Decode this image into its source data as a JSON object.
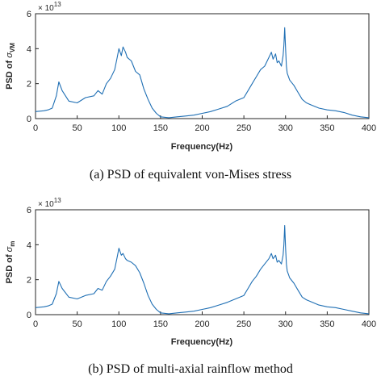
{
  "chart_data": [
    {
      "type": "line",
      "caption": "(a) PSD of equivalent von-Mises stress",
      "xlabel": "Frequency(Hz)",
      "ylabel_prefix": "PSD of ",
      "ylabel_symbol": "σ",
      "ylabel_sub": "VM",
      "y_multiplier_base": "× 10",
      "y_multiplier_exp": "13",
      "xlim": [
        0,
        400
      ],
      "ylim": [
        0,
        6
      ],
      "xticks": [
        "0",
        "50",
        "100",
        "150",
        "200",
        "250",
        "300",
        "350",
        "400"
      ],
      "yticks": [
        "0",
        "2",
        "4",
        "6"
      ],
      "grid": false,
      "series_color": "#1f6fb4",
      "series": [
        {
          "x": [
            0,
            10,
            15,
            20,
            25,
            28,
            32,
            40,
            50,
            60,
            70,
            75,
            80,
            85,
            90,
            95,
            98,
            100,
            103,
            105,
            108,
            110,
            115,
            120,
            125,
            130,
            135,
            140,
            145,
            150,
            160,
            170,
            180,
            190,
            200,
            210,
            220,
            230,
            240,
            250,
            255,
            260,
            265,
            270,
            275,
            280,
            283,
            285,
            288,
            290,
            292,
            295,
            297,
            298,
            299,
            300,
            301,
            302,
            305,
            310,
            315,
            320,
            325,
            330,
            340,
            350,
            360,
            370,
            380,
            390,
            400
          ],
          "y": [
            0.4,
            0.45,
            0.5,
            0.6,
            1.3,
            2.1,
            1.6,
            1.0,
            0.9,
            1.2,
            1.3,
            1.6,
            1.4,
            2.0,
            2.3,
            2.8,
            3.5,
            4.0,
            3.6,
            4.1,
            3.8,
            3.5,
            3.3,
            2.7,
            2.5,
            1.7,
            1.1,
            0.6,
            0.3,
            0.1,
            0.05,
            0.1,
            0.15,
            0.2,
            0.3,
            0.4,
            0.55,
            0.7,
            1.0,
            1.2,
            1.6,
            2.0,
            2.4,
            2.8,
            3.0,
            3.5,
            3.8,
            3.4,
            3.7,
            3.2,
            3.3,
            3.0,
            3.6,
            4.2,
            5.2,
            4.0,
            3.0,
            2.6,
            2.2,
            1.9,
            1.5,
            1.1,
            0.9,
            0.8,
            0.6,
            0.5,
            0.45,
            0.35,
            0.2,
            0.1,
            0.05
          ]
        }
      ]
    },
    {
      "type": "line",
      "caption": "(b) PSD of multi-axial rainflow method",
      "xlabel": "Frequency(Hz)",
      "ylabel_prefix": "PSD of ",
      "ylabel_symbol": "σ",
      "ylabel_sub": "m",
      "y_multiplier_base": "× 10",
      "y_multiplier_exp": "13",
      "xlim": [
        0,
        400
      ],
      "ylim": [
        0,
        6
      ],
      "xticks": [
        "0",
        "50",
        "100",
        "150",
        "200",
        "250",
        "300",
        "350",
        "400"
      ],
      "yticks": [
        "0",
        "2",
        "4",
        "6"
      ],
      "grid": false,
      "series_color": "#1f6fb4",
      "series": [
        {
          "x": [
            0,
            10,
            15,
            20,
            25,
            28,
            32,
            40,
            50,
            60,
            70,
            75,
            80,
            85,
            90,
            95,
            98,
            100,
            103,
            105,
            108,
            110,
            115,
            120,
            125,
            130,
            135,
            140,
            145,
            150,
            160,
            170,
            180,
            190,
            200,
            210,
            220,
            230,
            240,
            250,
            255,
            260,
            265,
            270,
            275,
            280,
            283,
            285,
            288,
            290,
            292,
            295,
            297,
            298,
            299,
            300,
            301,
            302,
            305,
            310,
            315,
            320,
            325,
            330,
            340,
            350,
            360,
            370,
            380,
            390,
            400
          ],
          "y": [
            0.4,
            0.45,
            0.5,
            0.6,
            1.2,
            1.9,
            1.5,
            1.0,
            0.9,
            1.1,
            1.2,
            1.5,
            1.4,
            1.9,
            2.2,
            2.6,
            3.3,
            3.8,
            3.4,
            3.5,
            3.2,
            3.1,
            3.0,
            2.8,
            2.4,
            1.8,
            1.1,
            0.6,
            0.3,
            0.1,
            0.05,
            0.1,
            0.15,
            0.2,
            0.3,
            0.4,
            0.55,
            0.7,
            0.9,
            1.1,
            1.5,
            1.9,
            2.2,
            2.6,
            2.9,
            3.2,
            3.5,
            3.2,
            3.4,
            3.0,
            3.1,
            2.9,
            3.4,
            4.0,
            5.1,
            3.8,
            2.9,
            2.5,
            2.1,
            1.8,
            1.4,
            1.0,
            0.85,
            0.75,
            0.55,
            0.45,
            0.4,
            0.3,
            0.2,
            0.1,
            0.05
          ]
        }
      ]
    }
  ]
}
